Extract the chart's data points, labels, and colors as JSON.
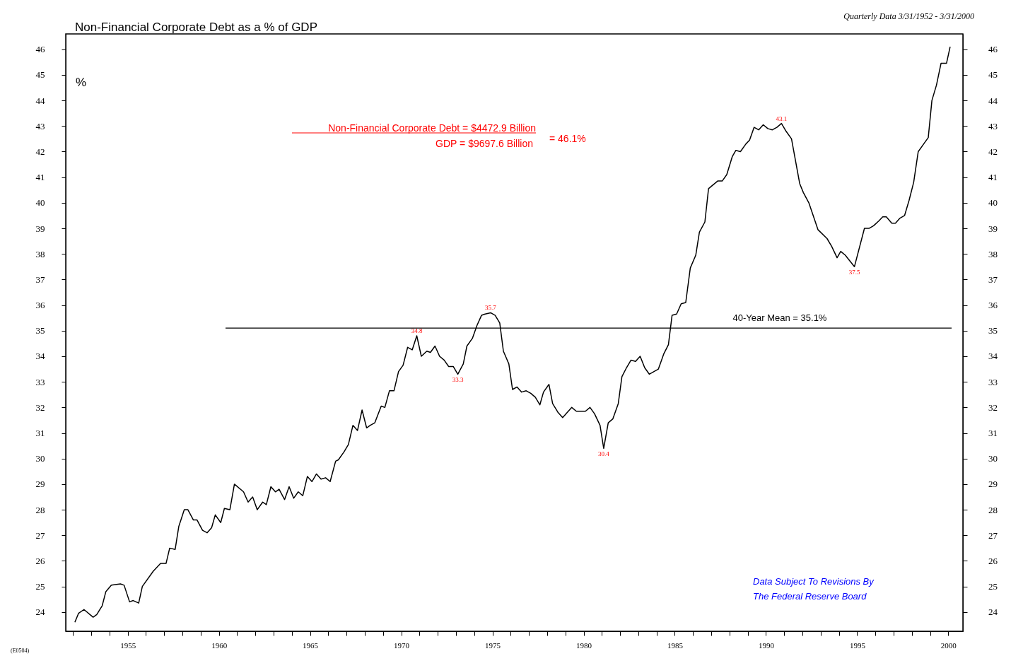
{
  "chart_data": {
    "type": "line",
    "title": "Non-Financial Corporate Debt as a % of GDP",
    "subtitle": "Quarterly Data 3/31/1952 - 3/31/2000",
    "x": [
      1952.1,
      1952.3,
      1952.6,
      1953.1,
      1953.3,
      1953.6,
      1953.8,
      1954.1,
      1954.6,
      1954.8,
      1955.1,
      1955.3,
      1955.6,
      1955.8,
      1956.4,
      1956.6,
      1956.8,
      1957.1,
      1957.3,
      1957.6,
      1957.8,
      1958.1,
      1958.3,
      1958.6,
      1958.8,
      1959.1,
      1959.35,
      1959.6,
      1959.8,
      1960.1,
      1960.3,
      1960.6,
      1960.85,
      1961.35,
      1961.6,
      1961.85,
      1962.1,
      1962.4,
      1962.6,
      1962.85,
      1963.1,
      1963.3,
      1963.6,
      1963.85,
      1964.1,
      1964.35,
      1964.6,
      1964.85,
      1965.1,
      1965.35,
      1965.6,
      1965.85,
      1966.1,
      1966.4,
      1966.55,
      1966.85,
      1967.1,
      1967.35,
      1967.6,
      1967.85,
      1968.1,
      1968.3,
      1968.55,
      1968.9,
      1969.1,
      1969.35,
      1969.6,
      1969.85,
      1970.1,
      1970.35,
      1970.6,
      1970.85,
      1971.1,
      1971.4,
      1971.6,
      1971.85,
      1972.1,
      1972.35,
      1972.6,
      1972.85,
      1973.1,
      1973.4,
      1973.6,
      1973.9,
      1974.15,
      1974.4,
      1974.6,
      1974.9,
      1975.15,
      1975.4,
      1975.6,
      1975.9,
      1976.1,
      1976.35,
      1976.6,
      1976.85,
      1977.1,
      1977.35,
      1977.6,
      1977.8,
      1978.1,
      1978.3,
      1978.6,
      1978.85,
      1979.1,
      1979.35,
      1979.6,
      1980.1,
      1980.35,
      1980.6,
      1980.9,
      1981.1,
      1981.35,
      1981.6,
      1981.9,
      1982.1,
      1982.35,
      1982.6,
      1982.85,
      1983.1,
      1983.35,
      1983.6,
      1984.1,
      1984.4,
      1984.65,
      1984.85,
      1985.1,
      1985.35,
      1985.6,
      1985.85,
      1986.15,
      1986.35,
      1986.65,
      1986.85,
      1987.35,
      1987.6,
      1987.85,
      1988.15,
      1988.35,
      1988.6,
      1988.9,
      1989.1,
      1989.35,
      1989.6,
      1989.85,
      1990.1,
      1990.35,
      1990.6,
      1990.85,
      1991.1,
      1991.4,
      1991.85,
      1992.05,
      1992.35,
      1992.85,
      1993.35,
      1993.6,
      1993.9,
      1994.1,
      1994.35,
      1994.85,
      1995.4,
      1995.65,
      1995.9,
      1996.2,
      1996.4,
      1996.6,
      1996.9,
      1997.1,
      1997.35,
      1997.6,
      1997.85,
      1998.1,
      1998.35,
      1998.65,
      1998.9,
      1999.1,
      1999.35,
      1999.6,
      1999.9,
      2000.1
    ],
    "series": [
      {
        "color": "#000000",
        "values": [
          23.6,
          23.95,
          24.1,
          23.8,
          23.9,
          24.25,
          24.8,
          25.05,
          25.1,
          25.05,
          24.4,
          24.45,
          24.35,
          25.0,
          25.6,
          25.75,
          25.9,
          25.9,
          26.5,
          26.45,
          27.35,
          28.0,
          28.0,
          27.6,
          27.6,
          27.2,
          27.1,
          27.3,
          27.8,
          27.5,
          28.05,
          28.0,
          29.0,
          28.7,
          28.3,
          28.5,
          28.0,
          28.3,
          28.2,
          28.9,
          28.7,
          28.8,
          28.4,
          28.9,
          28.45,
          28.7,
          28.55,
          29.3,
          29.1,
          29.4,
          29.2,
          29.25,
          29.1,
          29.9,
          29.95,
          30.25,
          30.55,
          31.3,
          31.1,
          31.9,
          31.2,
          31.3,
          31.4,
          32.05,
          32.0,
          32.65,
          32.65,
          33.4,
          33.65,
          34.35,
          34.25,
          34.8,
          34.0,
          34.2,
          34.15,
          34.4,
          34.0,
          33.85,
          33.6,
          33.6,
          33.3,
          33.7,
          34.4,
          34.7,
          35.2,
          35.6,
          35.65,
          35.7,
          35.6,
          35.3,
          34.2,
          33.7,
          32.7,
          32.8,
          32.6,
          32.65,
          32.55,
          32.4,
          32.1,
          32.6,
          32.9,
          32.15,
          31.8,
          31.6,
          31.8,
          32.0,
          31.85,
          31.85,
          32.0,
          31.75,
          31.3,
          30.4,
          31.4,
          31.55,
          32.15,
          33.2,
          33.55,
          33.85,
          33.8,
          34.0,
          33.55,
          33.3,
          33.5,
          34.1,
          34.45,
          35.6,
          35.65,
          36.05,
          36.1,
          37.45,
          37.95,
          38.85,
          39.25,
          40.55,
          40.85,
          40.85,
          41.1,
          41.8,
          42.05,
          42.0,
          42.3,
          42.45,
          42.95,
          42.85,
          43.05,
          42.9,
          42.85,
          42.95,
          43.1,
          42.8,
          42.5,
          40.75,
          40.4,
          40.0,
          38.95,
          38.6,
          38.3,
          37.85,
          38.1,
          37.95,
          37.5,
          39.0,
          39.0,
          39.1,
          39.3,
          39.45,
          39.45,
          39.2,
          39.2,
          39.4,
          39.5,
          40.1,
          40.8,
          42.0,
          42.3,
          42.55,
          44.0,
          44.6,
          45.45,
          45.45,
          46.1
        ]
      }
    ],
    "xlim": [
      1951.6,
      2000.8
    ],
    "ylim": [
      23.25,
      46.6
    ],
    "y2lim": [
      23.25,
      46.6
    ],
    "xticks": [
      {
        "value": 1952,
        "label": null
      },
      {
        "value": 1953,
        "label": null
      },
      {
        "value": 1954,
        "label": null
      },
      1955,
      {
        "value": 1956,
        "label": null
      },
      {
        "value": 1957,
        "label": null
      },
      {
        "value": 1958,
        "label": null
      },
      {
        "value": 1959,
        "label": null
      },
      1960,
      {
        "value": 1961,
        "label": null
      },
      {
        "value": 1962,
        "label": null
      },
      {
        "value": 1963,
        "label": null
      },
      {
        "value": 1964,
        "label": null
      },
      1965,
      {
        "value": 1966,
        "label": null
      },
      {
        "value": 1967,
        "label": null
      },
      {
        "value": 1968,
        "label": null
      },
      {
        "value": 1969,
        "label": null
      },
      1970,
      {
        "value": 1971,
        "label": null
      },
      {
        "value": 1972,
        "label": null
      },
      {
        "value": 1973,
        "label": null
      },
      {
        "value": 1974,
        "label": null
      },
      1975,
      {
        "value": 1976,
        "label": null
      },
      {
        "value": 1977,
        "label": null
      },
      {
        "value": 1978,
        "label": null
      },
      {
        "value": 1979,
        "label": null
      },
      1980,
      {
        "value": 1981,
        "label": null
      },
      {
        "value": 1982,
        "label": null
      },
      {
        "value": 1983,
        "label": null
      },
      {
        "value": 1984,
        "label": null
      },
      1985,
      {
        "value": 1986,
        "label": null
      },
      {
        "value": 1987,
        "label": null
      },
      {
        "value": 1988,
        "label": null
      },
      {
        "value": 1989,
        "label": null
      },
      1990,
      {
        "value": 1991,
        "label": null
      },
      {
        "value": 1992,
        "label": null
      },
      {
        "value": 1993,
        "label": null
      },
      {
        "value": 1994,
        "label": null
      },
      1995,
      {
        "value": 1996,
        "label": null
      },
      {
        "value": 1997,
        "label": null
      },
      {
        "value": 1998,
        "label": null
      },
      {
        "value": 1999,
        "label": null
      },
      2000
    ],
    "yticks": [
      24,
      25,
      26,
      27,
      28,
      29,
      30,
      31,
      32,
      33,
      34,
      35,
      36,
      37,
      38,
      39,
      40,
      41,
      42,
      43,
      44,
      45,
      46
    ],
    "y2ticks": [
      24,
      25,
      26,
      27,
      28,
      29,
      30,
      31,
      32,
      33,
      34,
      35,
      36,
      37,
      38,
      39,
      40,
      41,
      42,
      43,
      44,
      45,
      46
    ],
    "ref_lines": [
      {
        "axis": "y",
        "value": 35.1,
        "label": "40-Year Mean = 35.1%",
        "color": "#000000"
      }
    ],
    "annotations": [
      "Non-Financial Corporate Debt = $4472.9 Billion",
      "GDP = $9697.6 Billion",
      "= 46.1%",
      "Data Subject To Revisions By",
      "The Federal Reserve Board",
      "(E0504)",
      "%",
      {
        "text": "34.8",
        "x": 1970.85,
        "y": 34.8
      },
      {
        "text": "33.3",
        "x": 1973.1,
        "y": 33.3
      },
      {
        "text": "35.7",
        "x": 1974.9,
        "y": 35.7
      },
      {
        "text": "30.4",
        "x": 1981.1,
        "y": 30.4
      },
      {
        "text": "43.1",
        "x": 1990.85,
        "y": 43.1
      },
      {
        "text": "37.5",
        "x": 1994.85,
        "y": 37.5
      }
    ],
    "grid": false
  }
}
